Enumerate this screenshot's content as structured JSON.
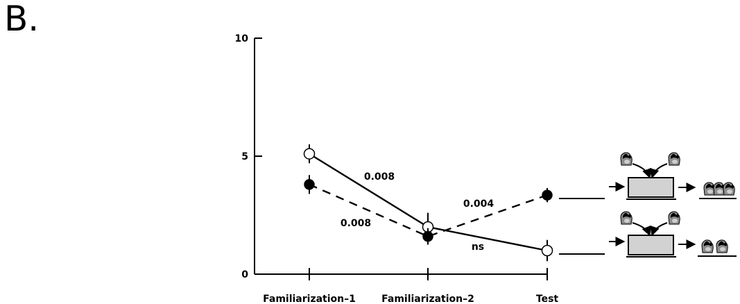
{
  "panel_label": "B.",
  "chart_data": {
    "type": "line",
    "title": "",
    "xlabel": "",
    "ylabel": "",
    "categories": [
      "Familiarization–1",
      "Familiarization–2",
      "Test"
    ],
    "ylim": [
      0,
      10
    ],
    "yticks": [
      0,
      5,
      10
    ],
    "grid": false,
    "series": [
      {
        "style": "solid line, open circles",
        "values": [
          5.1,
          2.0,
          1.0
        ],
        "errors": [
          0.4,
          0.6,
          0.45
        ]
      },
      {
        "style": "dashed line, filled circles",
        "values": [
          3.8,
          1.6,
          3.35
        ],
        "errors": [
          0.4,
          0.35,
          0.3
        ]
      }
    ],
    "annotations": [
      {
        "text": "0.008",
        "between": [
          "Familiarization–1",
          "Familiarization–2"
        ],
        "series": "solid"
      },
      {
        "text": "0.008",
        "between": [
          "Familiarization–1",
          "Familiarization–2"
        ],
        "series": "dashed"
      },
      {
        "text": "0.004",
        "between": [
          "Familiarization–2",
          "Test"
        ],
        "series": "dashed"
      },
      {
        "text": "ns",
        "between": [
          "Familiarization–2",
          "Test"
        ],
        "series": "solid"
      }
    ]
  },
  "icons": {
    "top_outcome": "three-objects-outcome-icon",
    "bottom_outcome": "two-objects-outcome-icon",
    "box": "gray-box-occluder-icon",
    "object": "object-icon"
  }
}
